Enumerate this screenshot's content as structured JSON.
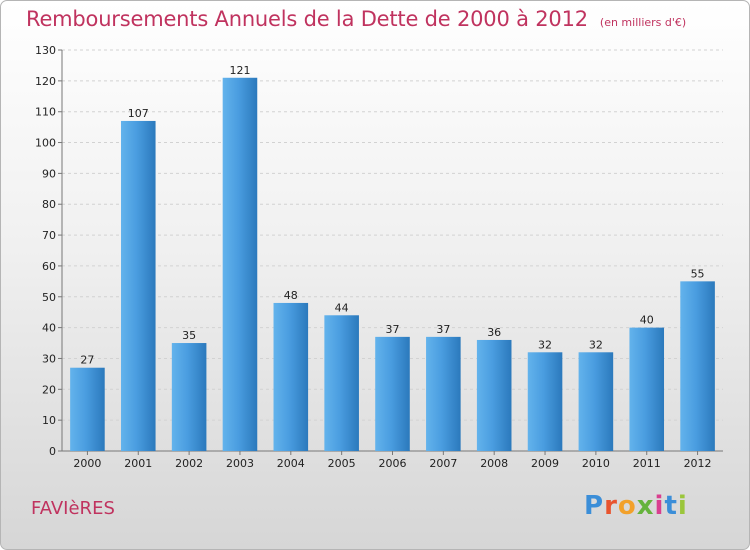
{
  "title": "Remboursements Annuels de la Dette de 2000 à 2012",
  "unit_note": "(en milliers d'€)",
  "commune": "FAVIèRES",
  "logo": {
    "text": "Proxiti",
    "letter_colors": [
      "#3b8ed8",
      "#e8542e",
      "#f2a12b",
      "#65b33c",
      "#d93f8f",
      "#3b8ed8",
      "#9bc63b"
    ]
  },
  "chart_data": {
    "type": "bar",
    "categories": [
      "2000",
      "2001",
      "2002",
      "2003",
      "2004",
      "2005",
      "2006",
      "2007",
      "2008",
      "2009",
      "2010",
      "2011",
      "2012"
    ],
    "values": [
      27,
      107,
      35,
      121,
      48,
      44,
      37,
      37,
      36,
      32,
      32,
      40,
      55
    ],
    "ylim": [
      0,
      130
    ],
    "yticks": [
      0,
      10,
      20,
      30,
      40,
      50,
      60,
      70,
      80,
      90,
      100,
      110,
      120,
      130
    ],
    "grid": true,
    "bar_color": "#4a9de0",
    "bar_color_light": "#63b3ec",
    "bar_color_dark": "#2b79bc"
  }
}
